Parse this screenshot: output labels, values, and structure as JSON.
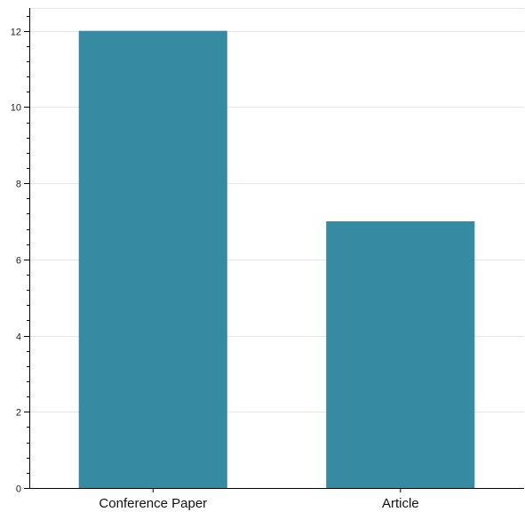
{
  "chart_data": {
    "type": "bar",
    "categories": [
      "Conference Paper",
      "Article"
    ],
    "values": [
      12,
      7
    ],
    "ylim": [
      0,
      12.6
    ],
    "y_ticks": [
      0,
      2,
      4,
      6,
      8,
      10,
      12
    ],
    "y_minor_step": 0.4,
    "grid": true,
    "bar_color": "#368ba3",
    "grid_color": "#e6e6e6",
    "title": "",
    "xlabel": "",
    "ylabel": ""
  }
}
